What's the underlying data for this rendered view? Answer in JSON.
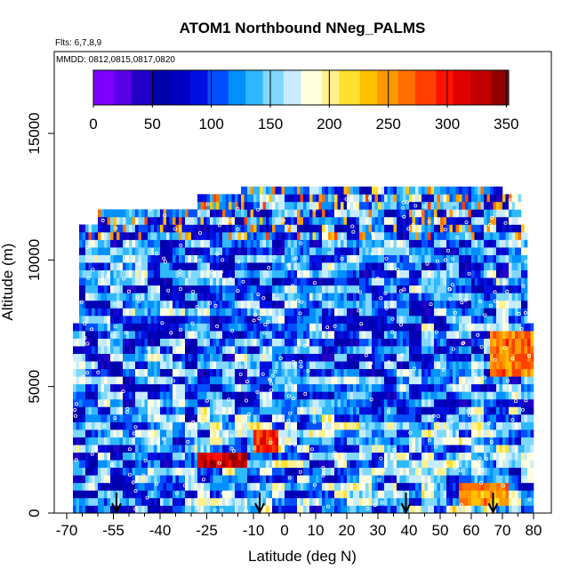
{
  "chart_data": {
    "type": "heatmap",
    "title": "ATOM1 Northbound NNeg_PALMS",
    "subtitle_flights": "Flts: 6,7,8,9",
    "subtitle_dates": "MMDD: 0812,0815,0817,0820",
    "xlabel": "Latitude (deg N)",
    "ylabel": "Altitude (m)",
    "xlim": [
      -70,
      82
    ],
    "ylim": [
      0,
      17500
    ],
    "x_ticks": [
      -70,
      -55,
      -40,
      -25,
      -10,
      0,
      10,
      20,
      30,
      40,
      50,
      60,
      70,
      80
    ],
    "x_tick_labels": [
      "-70",
      "-55",
      "-40",
      "-25",
      "-10",
      "0",
      "10",
      "20",
      "30",
      "40",
      "50",
      "60",
      "70",
      "80"
    ],
    "y_ticks": [
      0,
      5000,
      10000,
      15000
    ],
    "y_tick_labels": [
      "0",
      "5000",
      "10000",
      "15000"
    ],
    "colorbar": {
      "range": [
        0,
        352
      ],
      "ticks": [
        0,
        50,
        100,
        150,
        200,
        250,
        300,
        350
      ],
      "tick_labels": [
        "0",
        "50",
        "100",
        "150",
        "200",
        "250",
        "300",
        "350"
      ],
      "colors": [
        "#7f00ff",
        "#5a00e8",
        "#2200c8",
        "#0000a8",
        "#0000c0",
        "#0010e0",
        "#0050ff",
        "#0090ff",
        "#30b8ff",
        "#80d8ff",
        "#c8ecff",
        "#ffffe0",
        "#fff090",
        "#ffe030",
        "#ffc000",
        "#ff9800",
        "#ff7000",
        "#ff4000",
        "#ff1000",
        "#e00000",
        "#c00000",
        "#900000"
      ]
    },
    "flight_arrow_latitudes": [
      -54,
      -8,
      39,
      67
    ],
    "altitude_bin_m": 300,
    "profile_extent": [
      {
        "lat_min": -68,
        "lat_max": 80,
        "alt_max": 7500
      },
      {
        "lat_min": -66,
        "lat_max": 78,
        "alt_max": 11400
      },
      {
        "lat_min": -60,
        "lat_max": 76,
        "alt_max": 12000
      },
      {
        "lat_min": -28,
        "lat_max": 76,
        "alt_max": 12400
      },
      {
        "lat_min": -14,
        "lat_max": 70,
        "alt_max": 12900
      }
    ],
    "high_value_features": [
      {
        "lat_min": -28,
        "lat_max": -12,
        "alt_min": 1800,
        "alt_max": 2400,
        "value": 330
      },
      {
        "lat_min": -10,
        "lat_max": -2,
        "alt_min": 2400,
        "alt_max": 3300,
        "value": 300
      },
      {
        "lat_min": 56,
        "lat_max": 72,
        "alt_min": 300,
        "alt_max": 1200,
        "value": 260
      },
      {
        "lat_min": 66,
        "lat_max": 80,
        "alt_min": 5400,
        "alt_max": 7200,
        "value": 270
      }
    ]
  }
}
